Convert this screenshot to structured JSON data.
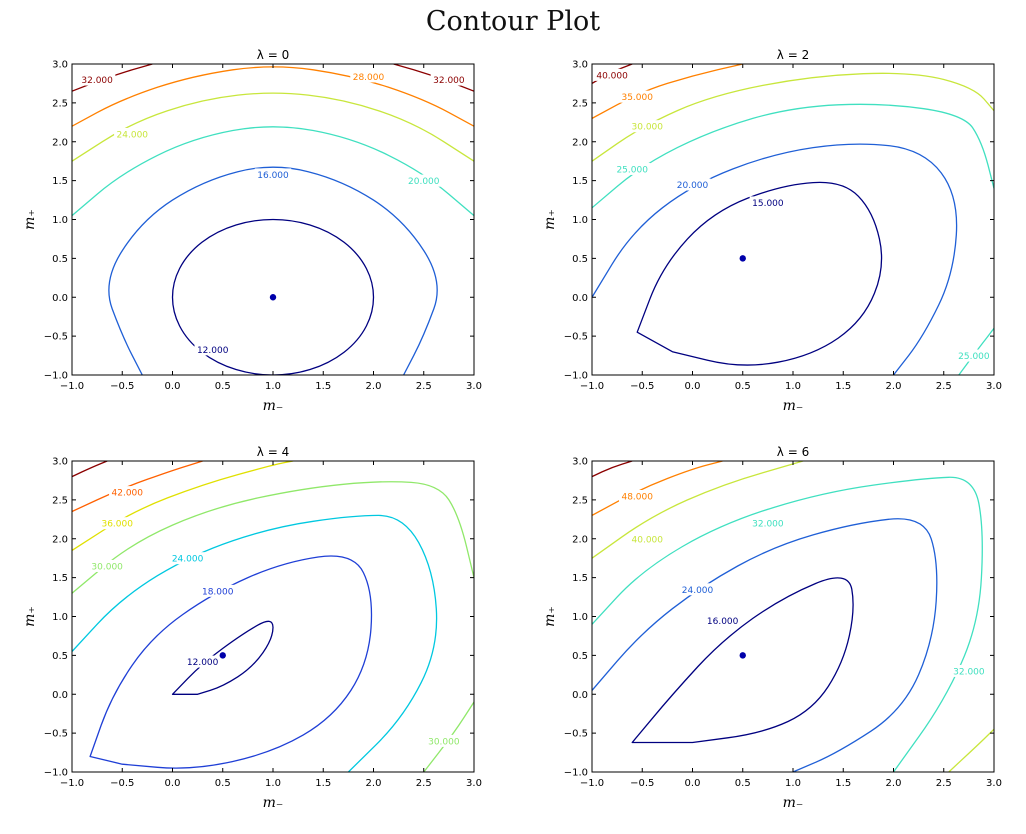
{
  "figure": {
    "title": "Contour Plot"
  },
  "chart_data": [
    {
      "type": "contour",
      "title": "λ = 0",
      "lambda": 0,
      "xlabel": "m₋",
      "ylabel": "m₊",
      "xlim": [
        -1.0,
        3.0
      ],
      "ylim": [
        -1.0,
        3.0
      ],
      "xticks": [
        "−1.0",
        "−0.5",
        "0.0",
        "0.5",
        "1.0",
        "1.5",
        "2.0",
        "2.5",
        "3.0"
      ],
      "yticks": [
        "−1.0",
        "−0.5",
        "0.0",
        "0.5",
        "1.0",
        "1.5",
        "2.0",
        "2.5",
        "3.0"
      ],
      "minimum_point": {
        "x": 1.0,
        "y": 0.0,
        "color": "#0000aa"
      },
      "contour_labels": [
        {
          "text": "12.000",
          "x": 0.4,
          "y": -0.67,
          "color": "#000080"
        },
        {
          "text": "16.000",
          "x": 1.0,
          "y": 1.58,
          "color": "#1f5fd6"
        },
        {
          "text": "20.000",
          "x": 2.5,
          "y": 1.5,
          "color": "#40e0c0"
        },
        {
          "text": "24.000",
          "x": -0.4,
          "y": 2.1,
          "color": "#c8e63c"
        },
        {
          "text": "28.000",
          "x": 1.95,
          "y": 2.84,
          "color": "#ff8000"
        },
        {
          "text": "32.000",
          "x": -0.75,
          "y": 2.8,
          "color": "#8b0000"
        },
        {
          "text": "32.000",
          "x": 2.75,
          "y": 2.8,
          "color": "#8b0000"
        }
      ]
    },
    {
      "type": "contour",
      "title": "λ = 2",
      "lambda": 2,
      "xlabel": "m₋",
      "ylabel": "m₊",
      "xlim": [
        -1.0,
        3.0
      ],
      "ylim": [
        -1.0,
        3.0
      ],
      "xticks": [
        "−1.0",
        "−0.5",
        "0.0",
        "0.5",
        "1.0",
        "1.5",
        "2.0",
        "2.5",
        "3.0"
      ],
      "yticks": [
        "−1.0",
        "−0.5",
        "0.0",
        "0.5",
        "1.0",
        "1.5",
        "2.0",
        "2.5",
        "3.0"
      ],
      "minimum_point": {
        "x": 0.5,
        "y": 0.5,
        "color": "#0000aa"
      },
      "contour_labels": [
        {
          "text": "15.000",
          "x": 0.75,
          "y": 1.22,
          "color": "#000080"
        },
        {
          "text": "20.000",
          "x": 0.0,
          "y": 1.45,
          "color": "#1f5fd6"
        },
        {
          "text": "25.000",
          "x": -0.6,
          "y": 1.65,
          "color": "#40e0c0"
        },
        {
          "text": "30.000",
          "x": -0.45,
          "y": 2.2,
          "color": "#c8e63c"
        },
        {
          "text": "35.000",
          "x": -0.55,
          "y": 2.58,
          "color": "#ff8000"
        },
        {
          "text": "40.000",
          "x": -0.8,
          "y": 2.86,
          "color": "#8b0000"
        },
        {
          "text": "25.000",
          "x": 2.8,
          "y": -0.75,
          "color": "#40e0c0"
        }
      ]
    },
    {
      "type": "contour",
      "title": "λ = 4",
      "lambda": 4,
      "xlabel": "m₋",
      "ylabel": "m₊",
      "xlim": [
        -1.0,
        3.0
      ],
      "ylim": [
        -1.0,
        3.0
      ],
      "xticks": [
        "−1.0",
        "−0.5",
        "0.0",
        "0.5",
        "1.0",
        "1.5",
        "2.0",
        "2.5",
        "3.0"
      ],
      "yticks": [
        "−1.0",
        "−0.5",
        "0.0",
        "0.5",
        "1.0",
        "1.5",
        "2.0",
        "2.5",
        "3.0"
      ],
      "minimum_point": {
        "x": 0.5,
        "y": 0.5,
        "color": "#0000aa"
      },
      "contour_labels": [
        {
          "text": "12.000",
          "x": 0.3,
          "y": 0.42,
          "color": "#000080"
        },
        {
          "text": "18.000",
          "x": 0.45,
          "y": 1.33,
          "color": "#1f3fd6"
        },
        {
          "text": "24.000",
          "x": 0.15,
          "y": 1.75,
          "color": "#00c8e0"
        },
        {
          "text": "30.000",
          "x": -0.65,
          "y": 1.65,
          "color": "#90e86a"
        },
        {
          "text": "36.000",
          "x": -0.55,
          "y": 2.2,
          "color": "#e0e000"
        },
        {
          "text": "42.000",
          "x": -0.45,
          "y": 2.6,
          "color": "#ff6000"
        },
        {
          "text": "30.000",
          "x": 2.7,
          "y": -0.6,
          "color": "#90e86a"
        }
      ]
    },
    {
      "type": "contour",
      "title": "λ = 6",
      "lambda": 6,
      "xlabel": "m₋",
      "ylabel": "m₊",
      "xlim": [
        -1.0,
        3.0
      ],
      "ylim": [
        -1.0,
        3.0
      ],
      "xticks": [
        "−1.0",
        "−0.5",
        "0.0",
        "0.5",
        "1.0",
        "1.5",
        "2.0",
        "2.5",
        "3.0"
      ],
      "yticks": [
        "−1.0",
        "−0.5",
        "0.0",
        "0.5",
        "1.0",
        "1.5",
        "2.0",
        "2.5",
        "3.0"
      ],
      "minimum_point": {
        "x": 0.5,
        "y": 0.5,
        "color": "#0000aa"
      },
      "contour_labels": [
        {
          "text": "16.000",
          "x": 0.3,
          "y": 0.95,
          "color": "#000080"
        },
        {
          "text": "24.000",
          "x": 0.05,
          "y": 1.35,
          "color": "#1f5fd6"
        },
        {
          "text": "32.000",
          "x": 0.75,
          "y": 2.2,
          "color": "#40e0c0"
        },
        {
          "text": "40.000",
          "x": -0.45,
          "y": 2.0,
          "color": "#c8e63c"
        },
        {
          "text": "48.000",
          "x": -0.55,
          "y": 2.55,
          "color": "#ff8000"
        },
        {
          "text": "32.000",
          "x": 2.75,
          "y": 0.3,
          "color": "#40e0c0"
        }
      ]
    }
  ]
}
